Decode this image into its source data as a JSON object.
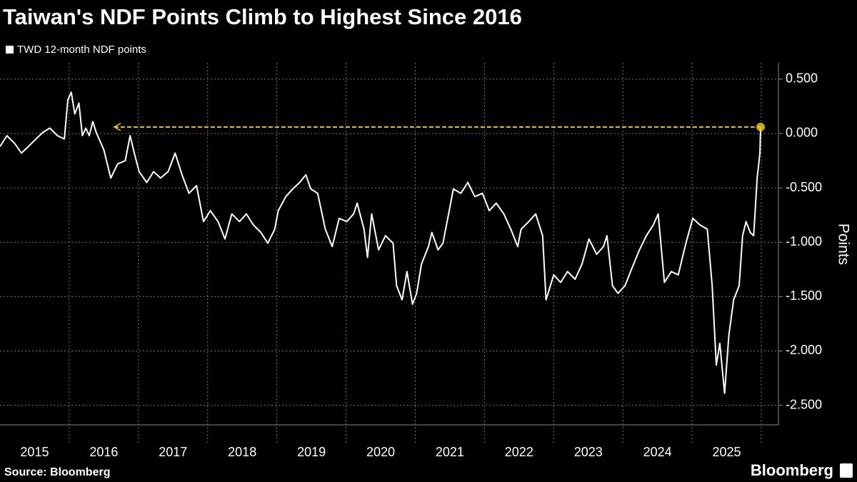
{
  "chart_data": {
    "type": "line",
    "title": "Taiwan's NDF Points Climb to Highest Since 2016",
    "y_label": "Points",
    "source": "Source: Bloomberg",
    "brand": "Bloomberg",
    "x": [
      2015.0,
      2015.1,
      2015.21,
      2015.31,
      2015.41,
      2015.52,
      2015.62,
      2015.72,
      2015.83,
      2015.93,
      2015.98,
      2016.03,
      2016.08,
      2016.14,
      2016.19,
      2016.24,
      2016.29,
      2016.34,
      2016.39,
      2016.5,
      2016.6,
      2016.7,
      2016.81,
      2016.88,
      2016.94,
      2017.01,
      2017.12,
      2017.22,
      2017.32,
      2017.43,
      2017.53,
      2017.63,
      2017.73,
      2017.84,
      2017.94,
      2018.04,
      2018.15,
      2018.25,
      2018.35,
      2018.46,
      2018.56,
      2018.66,
      2018.77,
      2018.87,
      2018.97,
      2019.02,
      2019.13,
      2019.23,
      2019.33,
      2019.42,
      2019.49,
      2019.59,
      2019.7,
      2019.8,
      2019.9,
      2020.01,
      2020.11,
      2020.16,
      2020.26,
      2020.31,
      2020.37,
      2020.47,
      2020.57,
      2020.68,
      2020.73,
      2020.81,
      2020.88,
      2020.96,
      2021.02,
      2021.09,
      2021.19,
      2021.24,
      2021.33,
      2021.4,
      2021.5,
      2021.55,
      2021.66,
      2021.76,
      2021.86,
      2021.97,
      2022.07,
      2022.17,
      2022.28,
      2022.38,
      2022.48,
      2022.53,
      2022.64,
      2022.74,
      2022.84,
      2022.89,
      2023.0,
      2023.1,
      2023.2,
      2023.31,
      2023.41,
      2023.51,
      2023.62,
      2023.72,
      2023.77,
      2023.85,
      2023.93,
      2024.03,
      2024.13,
      2024.24,
      2024.34,
      2024.44,
      2024.51,
      2024.6,
      2024.7,
      2024.8,
      2024.91,
      2025.01,
      2025.11,
      2025.22,
      2025.29,
      2025.35,
      2025.4,
      2025.47,
      2025.53,
      2025.6,
      2025.68,
      2025.73,
      2025.78,
      2025.84,
      2025.89,
      2025.94,
      2025.98,
      2025.99
    ],
    "series": [
      {
        "name": "TWD 12-month NDF points",
        "color": "#ffffff",
        "values": [
          -0.12,
          -0.02,
          -0.09,
          -0.18,
          -0.12,
          -0.05,
          0.01,
          0.05,
          -0.02,
          -0.05,
          0.31,
          0.38,
          0.18,
          0.28,
          -0.02,
          0.05,
          -0.02,
          0.11,
          0.01,
          -0.15,
          -0.41,
          -0.28,
          -0.25,
          -0.02,
          -0.18,
          -0.35,
          -0.45,
          -0.35,
          -0.41,
          -0.35,
          -0.18,
          -0.38,
          -0.55,
          -0.48,
          -0.81,
          -0.71,
          -0.81,
          -0.97,
          -0.74,
          -0.81,
          -0.74,
          -0.84,
          -0.91,
          -1.01,
          -0.88,
          -0.71,
          -0.58,
          -0.51,
          -0.45,
          -0.38,
          -0.51,
          -0.55,
          -0.88,
          -1.04,
          -0.78,
          -0.81,
          -0.74,
          -0.64,
          -0.88,
          -1.14,
          -0.74,
          -1.07,
          -0.94,
          -1.01,
          -1.4,
          -1.53,
          -1.27,
          -1.57,
          -1.47,
          -1.2,
          -1.04,
          -0.91,
          -1.07,
          -1.01,
          -0.68,
          -0.51,
          -0.55,
          -0.45,
          -0.58,
          -0.55,
          -0.71,
          -0.64,
          -0.74,
          -0.88,
          -1.04,
          -0.88,
          -0.81,
          -0.74,
          -0.94,
          -1.53,
          -1.3,
          -1.37,
          -1.27,
          -1.34,
          -1.2,
          -0.97,
          -1.11,
          -1.04,
          -0.94,
          -1.4,
          -1.47,
          -1.4,
          -1.24,
          -1.07,
          -0.94,
          -0.84,
          -0.74,
          -1.37,
          -1.27,
          -1.3,
          -1.01,
          -0.78,
          -0.84,
          -0.88,
          -1.4,
          -2.13,
          -1.93,
          -2.39,
          -1.86,
          -1.53,
          -1.4,
          -0.94,
          -0.81,
          -0.91,
          -0.94,
          -0.41,
          -0.18,
          0.06
        ]
      }
    ],
    "reference": {
      "x": [
        2016.65,
        2025.99
      ],
      "y": 0.06,
      "color": "#e6c619"
    },
    "xlim": [
      2015,
      2026
    ],
    "xticks": [
      2015,
      2016,
      2017,
      2018,
      2019,
      2020,
      2021,
      2022,
      2023,
      2024,
      2025
    ],
    "ylim": [
      -2.68,
      0.65
    ],
    "yticks": [
      {
        "value": 0.5,
        "label": "0.500"
      },
      {
        "value": 0,
        "label": "0.000"
      },
      {
        "value": -0.5,
        "label": "-0.500"
      },
      {
        "value": -1,
        "label": "-1.000"
      },
      {
        "value": -1.5,
        "label": "-1.500"
      },
      {
        "value": -2,
        "label": "-2.000"
      },
      {
        "value": -2.5,
        "label": "-2.500"
      }
    ],
    "grid": true
  }
}
